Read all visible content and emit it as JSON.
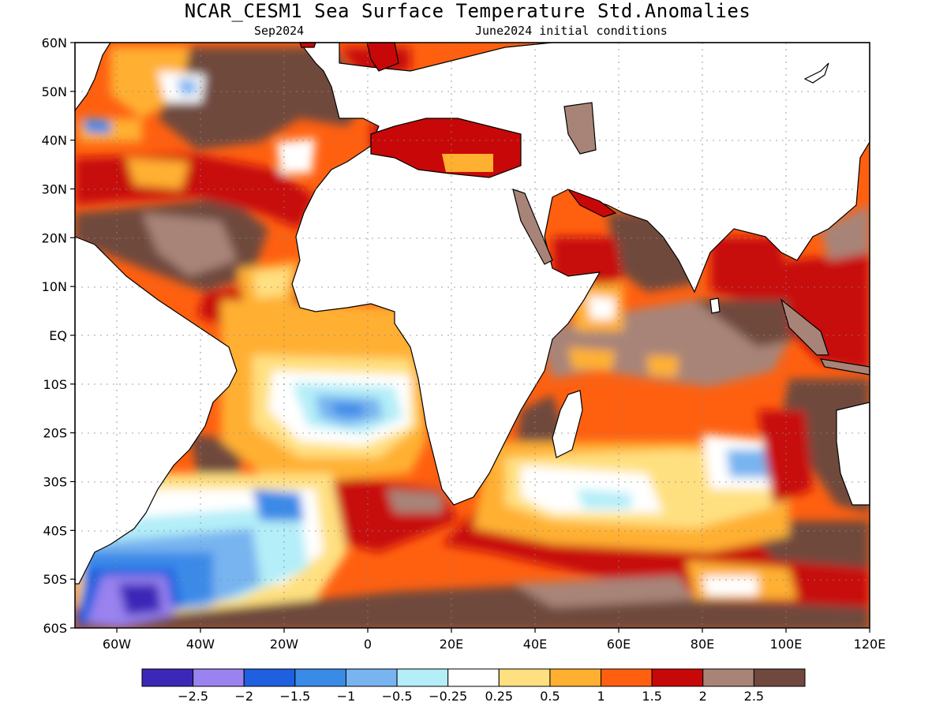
{
  "title": "NCAR_CESM1 Sea Surface Temperature Std.Anomalies",
  "subtitle_left": "Sep2024",
  "subtitle_right": "June2024 initial conditions",
  "map": {
    "lon_range": [
      -70,
      120
    ],
    "lat_range": [
      -60,
      60
    ],
    "lat_ticks": [
      {
        "value": 60,
        "label": "60N"
      },
      {
        "value": 50,
        "label": "50N"
      },
      {
        "value": 40,
        "label": "40N"
      },
      {
        "value": 30,
        "label": "30N"
      },
      {
        "value": 20,
        "label": "20N"
      },
      {
        "value": 10,
        "label": "10N"
      },
      {
        "value": 0,
        "label": "EQ"
      },
      {
        "value": -10,
        "label": "10S"
      },
      {
        "value": -20,
        "label": "20S"
      },
      {
        "value": -30,
        "label": "30S"
      },
      {
        "value": -40,
        "label": "40S"
      },
      {
        "value": -50,
        "label": "50S"
      },
      {
        "value": -60,
        "label": "60S"
      }
    ],
    "lon_ticks": [
      {
        "value": -60,
        "label": "60W"
      },
      {
        "value": -40,
        "label": "40W"
      },
      {
        "value": -20,
        "label": "20W"
      },
      {
        "value": 0,
        "label": "0"
      },
      {
        "value": 20,
        "label": "20E"
      },
      {
        "value": 40,
        "label": "40E"
      },
      {
        "value": 60,
        "label": "60E"
      },
      {
        "value": 80,
        "label": "80E"
      },
      {
        "value": 100,
        "label": "100E"
      },
      {
        "value": 120,
        "label": "120E"
      }
    ],
    "grid": "dotted",
    "land_color": "#ffffff"
  },
  "colorbar": {
    "colors": [
      "#3b28b8",
      "#9a82f0",
      "#1f60e0",
      "#3a8ae8",
      "#78b4f0",
      "#b4eef8",
      "#ffffff",
      "#ffe080",
      "#ffb030",
      "#ff6010",
      "#c80808",
      "#a88478",
      "#70483e"
    ],
    "labels": [
      "−2.5",
      "−2",
      "−1.5",
      "−1",
      "−0.5",
      "−0.25",
      "0.25",
      "0.5",
      "1",
      "1.5",
      "2",
      "2.5"
    ]
  }
}
